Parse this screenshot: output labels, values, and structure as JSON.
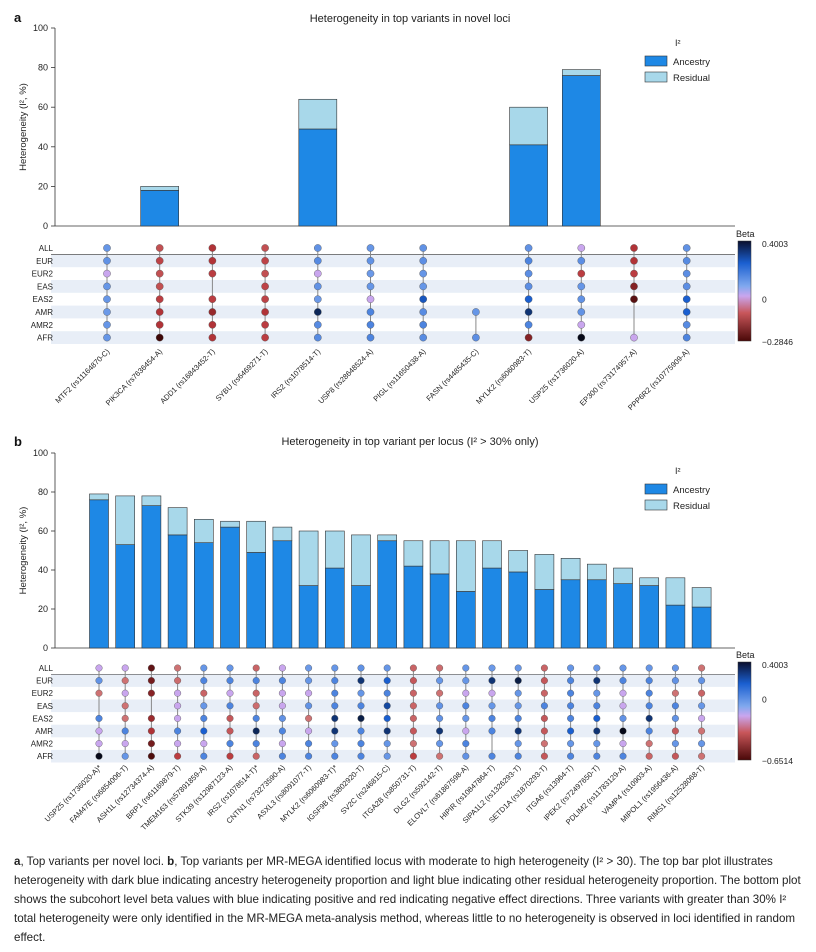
{
  "panels": [
    {
      "label": "a",
      "title": "Heterogeneity in top variants in novel loci",
      "y_axis_label": "Heterogeneity (I², %)",
      "y_ticks": [
        "100",
        "80",
        "60",
        "40",
        "20",
        "0"
      ],
      "legend_title": "I²",
      "legend_items": [
        "Ancestry",
        "Residual"
      ],
      "beta_title": "Beta",
      "beta_max": "0.4003",
      "beta_mid": "0",
      "beta_min": "−0.2846"
    },
    {
      "label": "b",
      "title": "Heterogeneity in top variant per locus (I² > 30% only)",
      "y_axis_label": "Heterogeneity (I², %)",
      "y_ticks": [
        "100",
        "80",
        "60",
        "40",
        "20",
        "0"
      ],
      "legend_title": "I²",
      "legend_items": [
        "Ancestry",
        "Residual"
      ],
      "beta_title": "Beta",
      "beta_max": "0.4003",
      "beta_mid": "0",
      "beta_min": "−0.6514"
    }
  ],
  "chart_data": [
    {
      "type": "bar",
      "stacked": true,
      "title": "Heterogeneity in top variants in novel loci",
      "ylabel": "Heterogeneity (I², %)",
      "ylim": [
        0,
        100
      ],
      "categories": [
        "MTF2 (rs11164870-C)",
        "PIK3CA (rs7636454-A)",
        "ADD1 (rs16843452-T)",
        "SYBU (rs6469271-T)",
        "IRS2 (rs1078514-T)",
        "USP8 (rs28648524-A)",
        "PIGL (rs11650438-A)",
        "FASN (rs4485435-C)",
        "MYLK2 (rs6060983-T)",
        "USP25 (rs1736020-A)",
        "EP300 (rs73174957-A)",
        "PPP6R2 (rs10775909-A)"
      ],
      "series": [
        {
          "name": "Ancestry",
          "color": "#1e88e5",
          "values": [
            0,
            18,
            0,
            0,
            49,
            0,
            0,
            0,
            41,
            76,
            0,
            0
          ]
        },
        {
          "name": "Residual",
          "color": "#a8d8ea",
          "values": [
            0,
            2,
            0,
            0,
            15,
            0,
            0,
            0,
            19,
            3,
            0,
            0
          ]
        }
      ],
      "matrix_rows": [
        "ALL",
        "EUR",
        "EUR2",
        "EAS",
        "EAS2",
        "AMR",
        "AMR2",
        "AFR"
      ],
      "beta_range": [
        -0.2846,
        0.4003
      ],
      "beta_values": [
        [
          0.05,
          -0.1,
          -0.15,
          -0.1,
          0.06,
          0.05,
          0.06,
          null,
          0.06,
          0.0,
          -0.15,
          0.06
        ],
        [
          0.06,
          -0.12,
          -0.15,
          -0.12,
          0.08,
          0.06,
          0.07,
          null,
          0.1,
          0.07,
          -0.15,
          0.08
        ],
        [
          0.0,
          -0.1,
          -0.13,
          -0.1,
          0.0,
          0.04,
          0.05,
          null,
          0.07,
          -0.13,
          -0.13,
          0.07
        ],
        [
          0.05,
          -0.1,
          null,
          -0.12,
          0.06,
          0.05,
          0.05,
          null,
          0.07,
          0.05,
          -0.2,
          0.07
        ],
        [
          0.05,
          -0.13,
          -0.13,
          -0.12,
          0.04,
          0.0,
          0.22,
          null,
          0.2,
          0.06,
          -0.25,
          0.2
        ],
        [
          0.04,
          -0.15,
          -0.18,
          -0.15,
          0.33,
          0.1,
          0.08,
          0.05,
          0.3,
          0.06,
          null,
          0.2
        ],
        [
          0.05,
          -0.15,
          -0.15,
          -0.13,
          0.08,
          0.1,
          0.1,
          null,
          0.1,
          0.0,
          null,
          0.08
        ],
        [
          0.05,
          -0.28,
          -0.15,
          -0.13,
          0.08,
          0.1,
          0.08,
          0.07,
          -0.2,
          0.4,
          0.0,
          0.1
        ]
      ]
    },
    {
      "type": "bar",
      "stacked": true,
      "title": "Heterogeneity in top variant per locus (I² > 30% only)",
      "ylabel": "Heterogeneity (I², %)",
      "ylim": [
        0,
        100
      ],
      "categories": [
        "USP25 (rs1736020-A)*",
        "FAM47E (rs6854006-T)",
        "ASH1L (rs12734374-A)",
        "BRP1 (rs61169879-T)",
        "TMEM163 (rs57891859-A)",
        "STK39 (rs12987123-A)",
        "IRS2 (rs1078514-T)*",
        "CNTN1 (rs73273590-A)",
        "ASXL3 (rs8091077-T)",
        "MYLK2 (rs6060983-T)*",
        "IGSF9B (rs3802920-T)",
        "SV2C (rs246815-C)",
        "ITGA2B (rs850731-T)",
        "DLG2 (rs592142-T)",
        "ELOVL7 (rs61867598-A)",
        "HIPIR (rs10847864-T)",
        "SIPA1L2 (rs1326293-T)",
        "SETD1A (rs1870293-T)",
        "ITGA6 (rs13964-T)",
        "IPEK2 (rs72497650-T)",
        "PDLIM2 (rs11783129-A)",
        "VAMP4 (rs10903-A)",
        "MIPOL1 (rs1956436-A)",
        "RIMS1 (rs12528068-T)"
      ],
      "series": [
        {
          "name": "Ancestry",
          "color": "#1e88e5",
          "values": [
            76,
            53,
            73,
            58,
            54,
            62,
            49,
            55,
            32,
            41,
            32,
            55,
            42,
            38,
            29,
            41,
            39,
            30,
            35,
            35,
            33,
            32,
            22,
            21
          ]
        },
        {
          "name": "Residual",
          "color": "#a8d8ea",
          "values": [
            3,
            25,
            5,
            14,
            12,
            3,
            16,
            7,
            28,
            19,
            26,
            3,
            13,
            17,
            26,
            14,
            11,
            18,
            11,
            8,
            8,
            4,
            14,
            10
          ]
        }
      ],
      "matrix_rows": [
        "ALL",
        "EUR",
        "EUR2",
        "EAS",
        "EAS2",
        "AMR",
        "AMR2",
        "AFR"
      ],
      "beta_range": [
        -0.6514,
        0.4003
      ],
      "beta_values": [
        [
          0.0,
          0.0,
          -0.55,
          -0.1,
          0.05,
          0.05,
          -0.15,
          0.0,
          0.04,
          0.05,
          0.06,
          0.05,
          -0.15,
          -0.12,
          0.05,
          0.04,
          0.05,
          -0.15,
          0.05,
          0.05,
          0.05,
          0.05,
          0.05,
          -0.1
        ],
        [
          0.06,
          -0.1,
          -0.5,
          -0.12,
          0.1,
          0.1,
          0.1,
          0.1,
          0.05,
          0.1,
          0.3,
          0.2,
          -0.2,
          0.05,
          0.05,
          0.3,
          0.35,
          -0.2,
          0.1,
          0.3,
          0.1,
          0.1,
          0.06,
          0.06
        ],
        [
          -0.1,
          0.0,
          -0.45,
          0.0,
          -0.15,
          0.0,
          -0.15,
          0.0,
          0.0,
          0.1,
          0.05,
          0.1,
          -0.15,
          -0.1,
          0.0,
          0.0,
          0.05,
          -0.15,
          0.1,
          0.05,
          0.0,
          0.1,
          -0.1,
          -0.15
        ],
        [
          null,
          -0.1,
          null,
          0.0,
          0.05,
          0.1,
          -0.12,
          0.0,
          0.06,
          0.1,
          0.1,
          0.25,
          -0.15,
          0.06,
          0.1,
          0.05,
          0.05,
          0.1,
          0.1,
          0.1,
          0.0,
          0.1,
          0.1,
          0.05
        ],
        [
          0.1,
          -0.1,
          -0.4,
          0.0,
          0.1,
          -0.2,
          0.1,
          0.06,
          -0.1,
          0.3,
          0.35,
          0.2,
          -0.15,
          0.06,
          0.05,
          0.1,
          0.1,
          -0.2,
          0.1,
          0.2,
          0.06,
          0.3,
          0.06,
          0.0
        ],
        [
          0.0,
          0.1,
          -0.35,
          0.1,
          0.2,
          -0.2,
          0.33,
          0.1,
          0.0,
          0.3,
          0.1,
          0.3,
          -0.2,
          0.3,
          0.0,
          0.1,
          0.3,
          -0.2,
          0.2,
          0.3,
          0.4,
          0.1,
          -0.2,
          -0.1
        ],
        [
          0.0,
          0.0,
          -0.5,
          0.0,
          0.0,
          0.1,
          0.1,
          0.0,
          0.1,
          0.05,
          0.1,
          0.05,
          -0.1,
          0.05,
          0.1,
          null,
          0.05,
          -0.1,
          0.05,
          0.05,
          0.0,
          -0.1,
          0.05,
          0.05
        ],
        [
          0.4,
          0.05,
          -0.6,
          -0.3,
          0.1,
          -0.3,
          -0.15,
          0.1,
          0.1,
          0.1,
          0.1,
          0.05,
          -0.3,
          -0.1,
          0.06,
          0.1,
          0.1,
          -0.2,
          0.1,
          0.1,
          0.1,
          -0.15,
          -0.2,
          -0.1
        ]
      ]
    }
  ],
  "caption": {
    "a_label": "a",
    "a_text": ", Top variants per novel loci. ",
    "b_label": "b",
    "b_text": ", Top variants per MR-MEGA identified locus with moderate to high heterogeneity (I² > 30). The top bar plot illustrates heterogeneity with dark blue indicating ancestry heterogeneity proportion and light blue indicating other residual heterogeneity proportion. The bottom plot shows the subcohort level beta values with blue indicating positive and red indicating negative effect directions. Three variants with greater than 30% I² total heterogeneity were only identified in the MR-MEGA meta-analysis method, whereas little to no heterogeneity is observed in loci identified in random effect."
  }
}
